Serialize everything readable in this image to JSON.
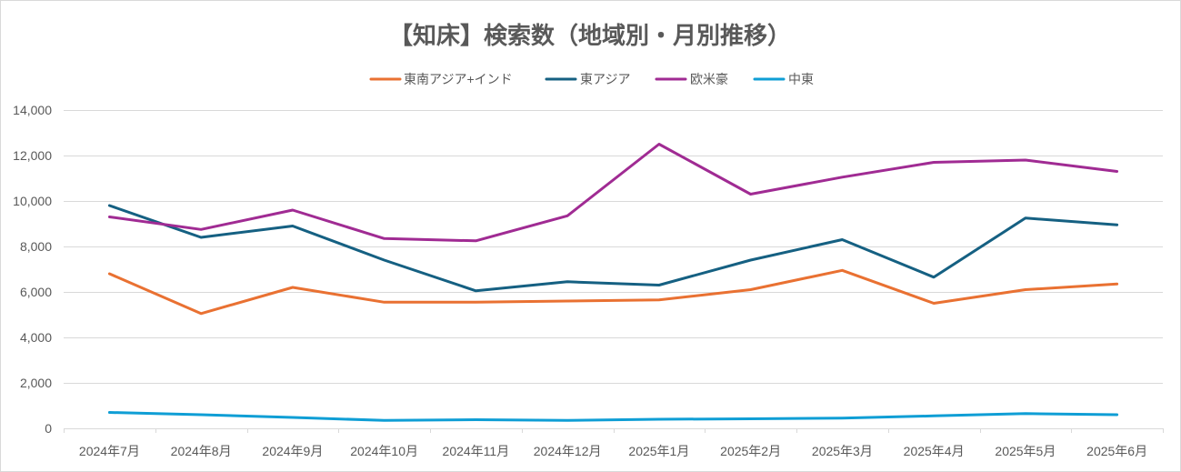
{
  "chart_data": {
    "type": "line",
    "title": "【知床】検索数（地域別・月別推移）",
    "categories": [
      "2024年7月",
      "2024年8月",
      "2024年9月",
      "2024年10月",
      "2024年11月",
      "2024年12月",
      "2025年1月",
      "2025年2月",
      "2025年3月",
      "2025年4月",
      "2025年5月",
      "2025年6月"
    ],
    "series": [
      {
        "name": "東南アジア+インド",
        "color": "#E97132",
        "values": [
          6800,
          5050,
          6200,
          5550,
          5550,
          5600,
          5650,
          6100,
          6950,
          5500,
          6100,
          6350
        ]
      },
      {
        "name": "東アジア",
        "color": "#156082",
        "values": [
          9800,
          8400,
          8900,
          7400,
          6050,
          6450,
          6300,
          7400,
          8300,
          6650,
          9250,
          8950
        ]
      },
      {
        "name": "欧米豪",
        "color": "#A02B93",
        "values": [
          9300,
          8750,
          9600,
          8350,
          8250,
          9350,
          12500,
          10300,
          11050,
          11700,
          11800,
          11300
        ]
      },
      {
        "name": "中東",
        "color": "#0F9ED5",
        "values": [
          700,
          600,
          480,
          350,
          380,
          350,
          400,
          420,
          450,
          550,
          650,
          600
        ]
      }
    ],
    "ylim": [
      0,
      14000
    ],
    "y_ticks": [
      0,
      2000,
      4000,
      6000,
      8000,
      10000,
      12000,
      14000
    ],
    "y_tick_labels": [
      "0",
      "2,000",
      "4,000",
      "6,000",
      "8,000",
      "10,000",
      "12,000",
      "14,000"
    ],
    "grid": "horizontal",
    "legend_position": "top"
  }
}
